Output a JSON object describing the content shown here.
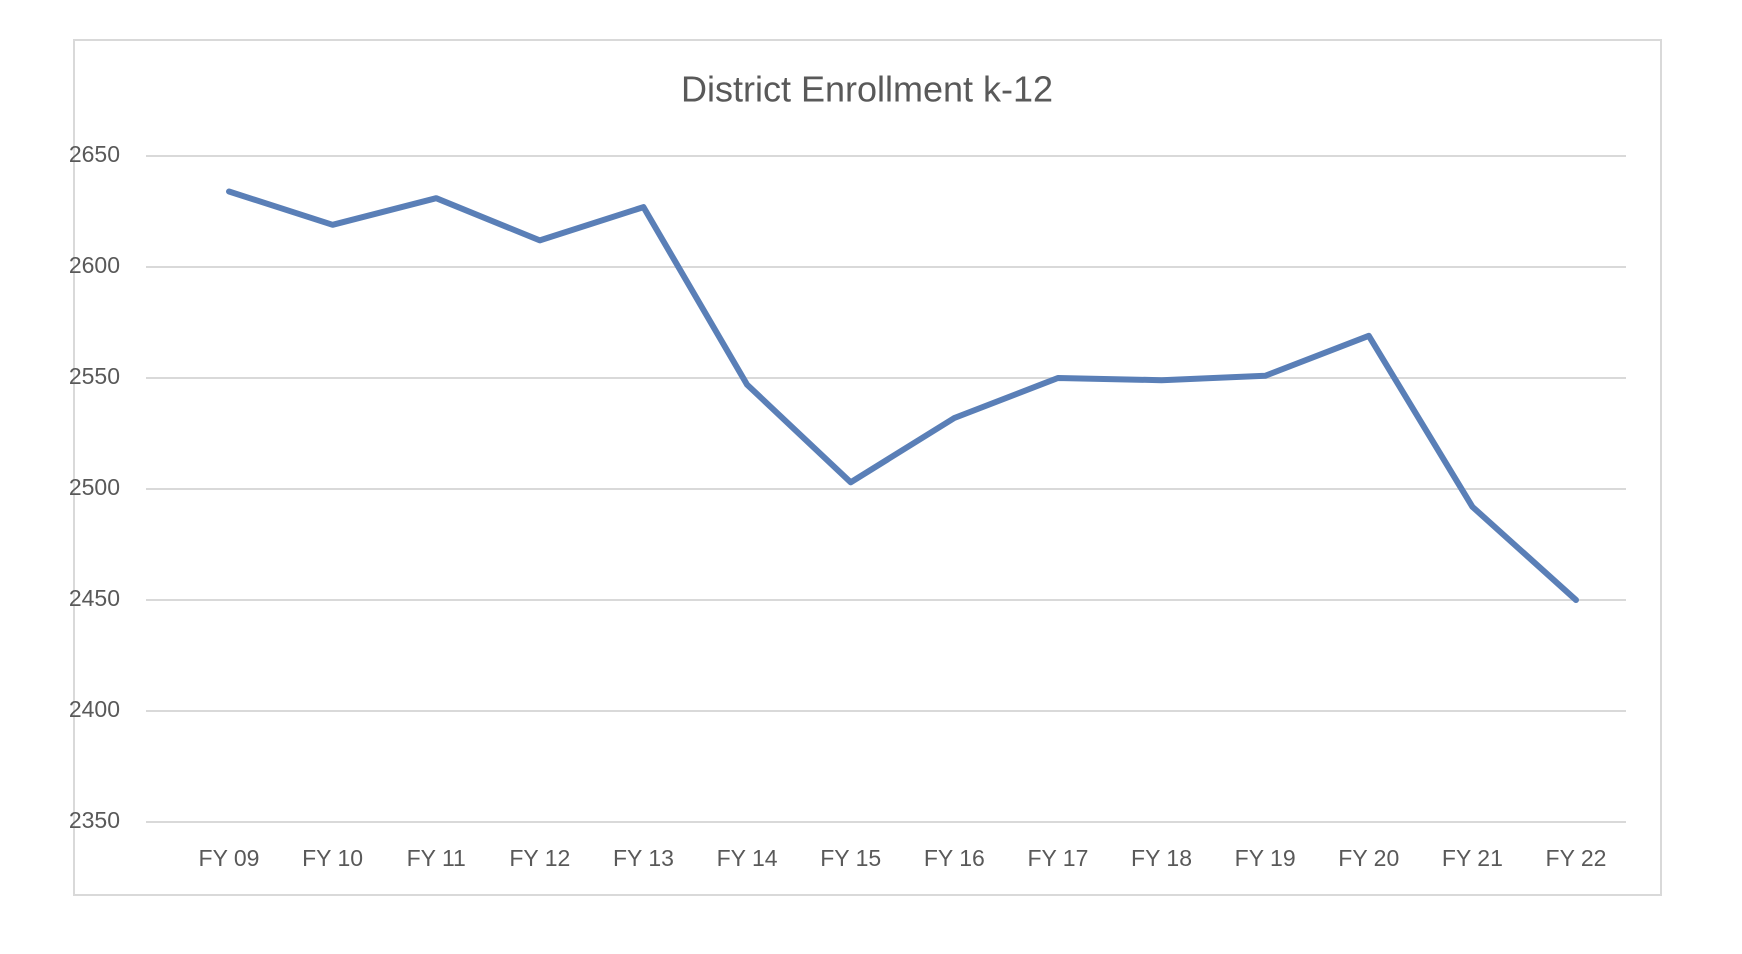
{
  "chart_data": {
    "type": "line",
    "title": "District Enrollment k-12",
    "categories": [
      "FY 09",
      "FY 10",
      "FY 11",
      "FY 12",
      "FY 13",
      "FY 14",
      "FY 15",
      "FY 16",
      "FY 17",
      "FY 18",
      "FY 19",
      "FY 20",
      "FY 21",
      "FY 22"
    ],
    "values": [
      2634,
      2619,
      2631,
      2612,
      2627,
      2547,
      2503,
      2532,
      2550,
      2549,
      2551,
      2569,
      2492,
      2450
    ],
    "color": "#5a7fb7",
    "ylim": [
      2350,
      2650
    ],
    "yticks": [
      2350,
      2400,
      2450,
      2500,
      2550,
      2600,
      2650
    ],
    "grid": true
  }
}
